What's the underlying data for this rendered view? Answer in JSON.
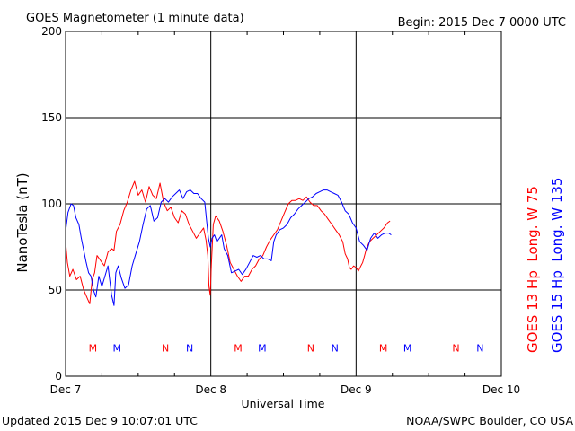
{
  "header": {
    "title": "GOES Magnetometer (1 minute data)",
    "begin": "Begin:  2015 Dec 7 0000 UTC"
  },
  "footer": {
    "updated": "Updated 2015 Dec  9 10:07:01 UTC",
    "credit": "NOAA/SWPC Boulder, CO USA"
  },
  "chart_data": {
    "type": "line",
    "title": "GOES Magnetometer (1 minute data)",
    "xlabel": "Universal Time",
    "ylabel": "NanoTesla (nT)",
    "ylim": [
      0,
      200
    ],
    "xlim_hours": [
      0,
      72
    ],
    "yticks": [
      0,
      50,
      100,
      150,
      200
    ],
    "xticks": [
      {
        "hour": 0,
        "label": "Dec 7"
      },
      {
        "hour": 24,
        "label": "Dec 8"
      },
      {
        "hour": 48,
        "label": "Dec 9"
      },
      {
        "hour": 72,
        "label": "Dec 10"
      }
    ],
    "grid": true,
    "legend_position": "right",
    "series": [
      {
        "name": "GOES 13 Hp  Long. W 75",
        "color": "#ff0000",
        "points": [
          [
            0,
            78
          ],
          [
            0.3,
            66
          ],
          [
            0.7,
            58
          ],
          [
            1.2,
            62
          ],
          [
            1.8,
            56
          ],
          [
            2.4,
            58
          ],
          [
            3.0,
            50
          ],
          [
            3.6,
            45
          ],
          [
            4.0,
            42
          ],
          [
            4.4,
            56
          ],
          [
            4.8,
            60
          ],
          [
            5.2,
            70
          ],
          [
            5.8,
            67
          ],
          [
            6.4,
            64
          ],
          [
            7.0,
            72
          ],
          [
            7.6,
            74
          ],
          [
            8.0,
            73
          ],
          [
            8.4,
            84
          ],
          [
            9.0,
            88
          ],
          [
            9.6,
            96
          ],
          [
            10.2,
            101
          ],
          [
            10.8,
            108
          ],
          [
            11.4,
            113
          ],
          [
            12.0,
            105
          ],
          [
            12.6,
            108
          ],
          [
            13.2,
            101
          ],
          [
            13.8,
            110
          ],
          [
            14.4,
            105
          ],
          [
            15.0,
            103
          ],
          [
            15.6,
            112
          ],
          [
            16.2,
            101
          ],
          [
            16.8,
            96
          ],
          [
            17.4,
            98
          ],
          [
            18.0,
            92
          ],
          [
            18.6,
            89
          ],
          [
            19.2,
            96
          ],
          [
            19.8,
            94
          ],
          [
            20.4,
            88
          ],
          [
            21.0,
            84
          ],
          [
            21.6,
            80
          ],
          [
            22.2,
            83
          ],
          [
            22.8,
            86
          ],
          [
            23.2,
            79
          ],
          [
            23.5,
            70
          ],
          [
            23.7,
            52
          ],
          [
            23.9,
            47
          ],
          [
            24.1,
            65
          ],
          [
            24.4,
            88
          ],
          [
            24.8,
            93
          ],
          [
            25.4,
            90
          ],
          [
            26.0,
            84
          ],
          [
            26.6,
            76
          ],
          [
            27.2,
            66
          ],
          [
            27.8,
            62
          ],
          [
            28.4,
            58
          ],
          [
            29.0,
            55
          ],
          [
            29.6,
            58
          ],
          [
            30.2,
            58
          ],
          [
            30.8,
            62
          ],
          [
            31.4,
            64
          ],
          [
            32.0,
            68
          ],
          [
            32.6,
            70
          ],
          [
            33.2,
            75
          ],
          [
            33.8,
            79
          ],
          [
            34.4,
            82
          ],
          [
            35.0,
            85
          ],
          [
            35.6,
            90
          ],
          [
            36.2,
            95
          ],
          [
            36.8,
            100
          ],
          [
            37.4,
            102
          ],
          [
            38.0,
            102
          ],
          [
            38.6,
            103
          ],
          [
            39.2,
            102
          ],
          [
            39.8,
            104
          ],
          [
            40.4,
            101
          ],
          [
            41.0,
            99
          ],
          [
            41.6,
            99
          ],
          [
            42.2,
            96
          ],
          [
            42.8,
            94
          ],
          [
            43.4,
            91
          ],
          [
            44.0,
            88
          ],
          [
            44.6,
            85
          ],
          [
            45.2,
            82
          ],
          [
            45.8,
            78
          ],
          [
            46.2,
            71
          ],
          [
            46.6,
            68
          ],
          [
            46.9,
            63
          ],
          [
            47.2,
            62
          ],
          [
            47.6,
            64
          ],
          [
            48.0,
            63
          ],
          [
            48.4,
            61
          ],
          [
            48.8,
            64
          ],
          [
            49.1,
            66
          ],
          [
            49.4,
            70
          ],
          [
            49.7,
            74
          ],
          [
            50.2,
            78
          ],
          [
            50.8,
            80
          ],
          [
            51.4,
            82
          ],
          [
            52.0,
            84
          ],
          [
            52.6,
            86
          ],
          [
            53.2,
            89
          ],
          [
            53.6,
            90
          ]
        ]
      },
      {
        "name": "GOES 15 Hp  Long. W 135",
        "color": "#0000ff",
        "points": [
          [
            0,
            84
          ],
          [
            0.4,
            95
          ],
          [
            0.9,
            100
          ],
          [
            1.3,
            99
          ],
          [
            1.7,
            92
          ],
          [
            2.2,
            88
          ],
          [
            2.6,
            80
          ],
          [
            3.0,
            73
          ],
          [
            3.4,
            66
          ],
          [
            3.8,
            60
          ],
          [
            4.2,
            58
          ],
          [
            4.6,
            50
          ],
          [
            5.0,
            46
          ],
          [
            5.5,
            58
          ],
          [
            6.0,
            52
          ],
          [
            6.5,
            58
          ],
          [
            7.0,
            64
          ],
          [
            7.6,
            47
          ],
          [
            8.0,
            41
          ],
          [
            8.3,
            60
          ],
          [
            8.7,
            64
          ],
          [
            9.2,
            57
          ],
          [
            9.8,
            51
          ],
          [
            10.4,
            53
          ],
          [
            11.0,
            64
          ],
          [
            11.6,
            71
          ],
          [
            12.2,
            78
          ],
          [
            12.8,
            88
          ],
          [
            13.4,
            97
          ],
          [
            14.0,
            99
          ],
          [
            14.6,
            90
          ],
          [
            15.2,
            92
          ],
          [
            15.8,
            101
          ],
          [
            16.4,
            103
          ],
          [
            17.0,
            101
          ],
          [
            17.6,
            104
          ],
          [
            18.2,
            106
          ],
          [
            18.8,
            108
          ],
          [
            19.4,
            103
          ],
          [
            20.0,
            107
          ],
          [
            20.6,
            108
          ],
          [
            21.2,
            106
          ],
          [
            21.8,
            106
          ],
          [
            22.4,
            103
          ],
          [
            23.0,
            101
          ],
          [
            23.3,
            90
          ],
          [
            23.6,
            80
          ],
          [
            23.9,
            75
          ],
          [
            24.2,
            80
          ],
          [
            24.6,
            82
          ],
          [
            25.0,
            78
          ],
          [
            25.4,
            80
          ],
          [
            25.8,
            82
          ],
          [
            26.2,
            74
          ],
          [
            26.8,
            70
          ],
          [
            27.4,
            60
          ],
          [
            28.0,
            61
          ],
          [
            28.6,
            62
          ],
          [
            29.2,
            59
          ],
          [
            29.8,
            62
          ],
          [
            30.4,
            66
          ],
          [
            31.0,
            70
          ],
          [
            31.6,
            69
          ],
          [
            32.2,
            70
          ],
          [
            32.8,
            68
          ],
          [
            33.4,
            68
          ],
          [
            34.0,
            67
          ],
          [
            34.4,
            78
          ],
          [
            34.8,
            82
          ],
          [
            35.4,
            85
          ],
          [
            36.0,
            86
          ],
          [
            36.6,
            88
          ],
          [
            37.2,
            92
          ],
          [
            37.8,
            94
          ],
          [
            38.4,
            97
          ],
          [
            39.0,
            99
          ],
          [
            39.6,
            101
          ],
          [
            40.2,
            103
          ],
          [
            40.8,
            104
          ],
          [
            41.4,
            106
          ],
          [
            42.0,
            107
          ],
          [
            42.6,
            108
          ],
          [
            43.2,
            108
          ],
          [
            43.8,
            107
          ],
          [
            44.4,
            106
          ],
          [
            45.0,
            105
          ],
          [
            45.6,
            101
          ],
          [
            46.2,
            96
          ],
          [
            46.8,
            94
          ],
          [
            47.4,
            89
          ],
          [
            48.0,
            86
          ],
          [
            48.6,
            78
          ],
          [
            49.2,
            76
          ],
          [
            49.8,
            73
          ],
          [
            50.4,
            80
          ],
          [
            51.0,
            83
          ],
          [
            51.6,
            80
          ],
          [
            52.2,
            82
          ],
          [
            52.8,
            83
          ],
          [
            53.4,
            83
          ],
          [
            53.8,
            82
          ]
        ]
      }
    ],
    "event_markers": [
      {
        "hour": 4.5,
        "label": "M",
        "color": "#ff0000"
      },
      {
        "hour": 8.5,
        "label": "M",
        "color": "#0000ff"
      },
      {
        "hour": 16.5,
        "label": "N",
        "color": "#ff0000"
      },
      {
        "hour": 20.5,
        "label": "N",
        "color": "#0000ff"
      },
      {
        "hour": 28.5,
        "label": "M",
        "color": "#ff0000"
      },
      {
        "hour": 32.5,
        "label": "M",
        "color": "#0000ff"
      },
      {
        "hour": 40.5,
        "label": "N",
        "color": "#ff0000"
      },
      {
        "hour": 44.5,
        "label": "N",
        "color": "#0000ff"
      },
      {
        "hour": 52.5,
        "label": "M",
        "color": "#ff0000"
      },
      {
        "hour": 56.5,
        "label": "M",
        "color": "#0000ff"
      },
      {
        "hour": 64.5,
        "label": "N",
        "color": "#ff0000"
      },
      {
        "hour": 68.5,
        "label": "N",
        "color": "#0000ff"
      }
    ],
    "marker_level": 17
  }
}
